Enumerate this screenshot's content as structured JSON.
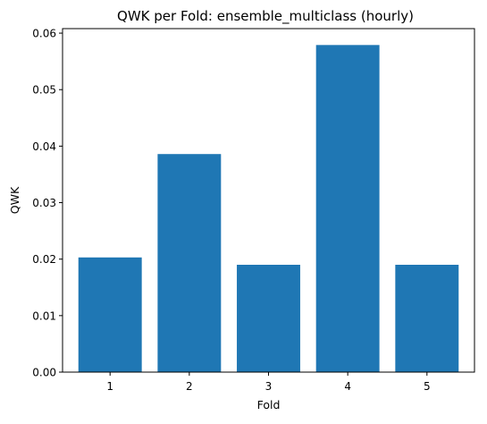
{
  "chart_data": {
    "type": "bar",
    "title": "QWK per Fold: ensemble_multiclass (hourly)",
    "xlabel": "Fold",
    "ylabel": "QWK",
    "categories": [
      "1",
      "2",
      "3",
      "4",
      "5"
    ],
    "values": [
      0.0203,
      0.0386,
      0.019,
      0.0579,
      0.019
    ],
    "ylim": [
      0,
      0.0608
    ],
    "yticks": [
      "0.00",
      "0.01",
      "0.02",
      "0.03",
      "0.04",
      "0.05",
      "0.06"
    ],
    "ytick_values": [
      0,
      0.01,
      0.02,
      0.03,
      0.04,
      0.05,
      0.06
    ],
    "bar_color": "#1f77b4",
    "grid": false,
    "legend": "none"
  }
}
